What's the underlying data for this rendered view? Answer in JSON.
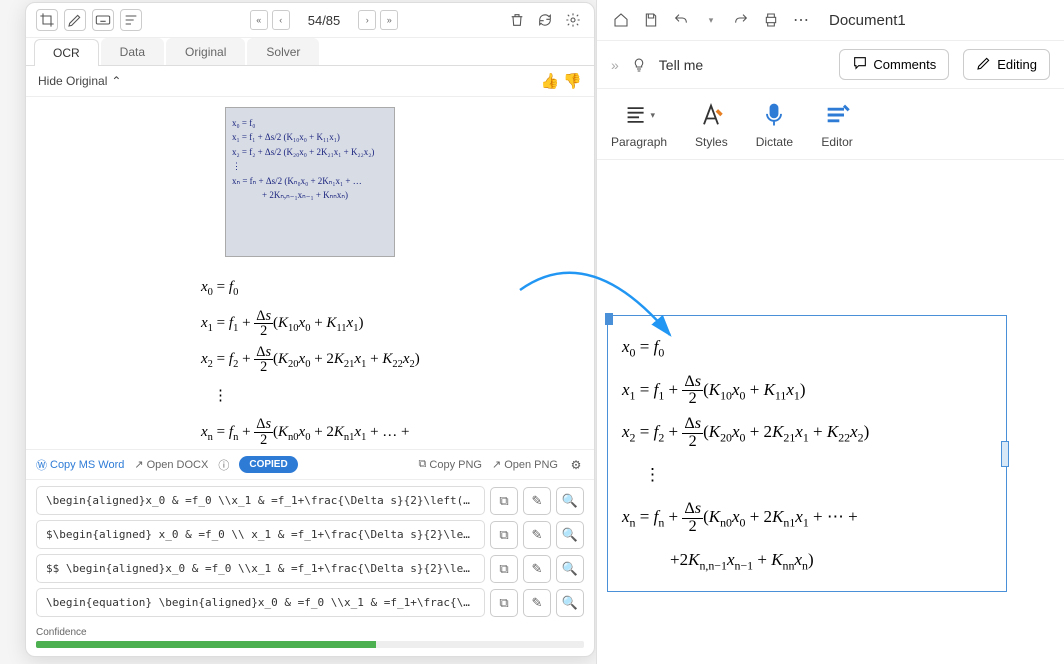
{
  "colors": {
    "accent": "#2e7bd6",
    "arrow": "#2196f3",
    "confidence_fill": "#4caf50",
    "eq_border": "#4a90d9"
  },
  "app": {
    "toolbar_icons": [
      "crop",
      "pen",
      "keyboard",
      "lines"
    ],
    "nav": {
      "first": "«",
      "prev": "‹",
      "page_text": "54/85",
      "next": "›",
      "last": "»"
    },
    "right_icons": [
      "trash",
      "refresh",
      "settings"
    ],
    "tabs": [
      {
        "label": "OCR",
        "active": true
      },
      {
        "label": "Data",
        "active": false
      },
      {
        "label": "Original",
        "active": false
      },
      {
        "label": "Solver",
        "active": false
      }
    ],
    "hide_original_label": "Hide Original",
    "handwritten_lines": [
      "x₀ = f₀",
      "x₁ = f₁ + Δs/2 (K₁₀x₀ + K₁₁x₁)",
      "x₂ = f₂ + Δs/2 (K₂₀x₀ + 2K₂₁x₁ + K₂₂x₂)",
      "⋮",
      "xₙ = fₙ + Δs/2 (Kₙ₀x₀ + 2Kₙ₁x₁ + …",
      "+ 2Kₙ,ₙ₋₁xₙ₋₁ + Kₙₙxₙ)"
    ],
    "rendered_equations": [
      "x₀ = f₀",
      "x₁ = f₁ + (Δs/2)(K₁₀x₀ + K₁₁x₁)",
      "x₂ = f₂ + (Δs/2)(K₂₀x₀ + 2K₂₁x₁ + K₂₂x₂)",
      "⋮",
      "xₙ = fₙ + (Δs/2)(Kₙ₀x₀ + 2Kₙ₁x₁ + … +",
      "+2Kₙ,ₙ₋₁xₙ₋₁ + Kₙₙxₙ)"
    ],
    "action_bar": {
      "copy_word": "Copy MS Word",
      "open_docx": "Open DOCX",
      "copied_pill": "COPIED",
      "copy_png": "Copy PNG",
      "open_png": "Open PNG"
    },
    "code_rows": [
      "\\begin{aligned}x_0 & =f_0 \\\\x_1 & =f_1+\\frac{\\Delta s}{2}\\left(K_{10…",
      "$\\begin{aligned} x_0 & =f_0 \\\\ x_1 & =f_1+\\frac{\\Delta s}{2}\\left(K_…",
      "$$ \\begin{aligned}x_0 & =f_0 \\\\x_1 & =f_1+\\frac{\\Delta s}{2}\\left(K_…",
      "\\begin{equation} \\begin{aligned}x_0 & =f_0 \\\\x_1 & =f_1+\\frac{\\Delta…"
    ],
    "confidence": {
      "label": "Confidence",
      "percent": 62
    }
  },
  "word": {
    "title": "Document1",
    "top_icons": [
      "home",
      "save",
      "undo",
      "redo",
      "print",
      "more"
    ],
    "tellme": "Tell me",
    "comments_btn": "Comments",
    "editing_btn": "Editing",
    "ribbon": [
      {
        "label": "Paragraph",
        "icon_name": "paragraph"
      },
      {
        "label": "Styles",
        "icon_name": "styles"
      },
      {
        "label": "Dictate",
        "icon_name": "dictate"
      },
      {
        "label": "Editor",
        "icon_name": "editor"
      }
    ]
  }
}
